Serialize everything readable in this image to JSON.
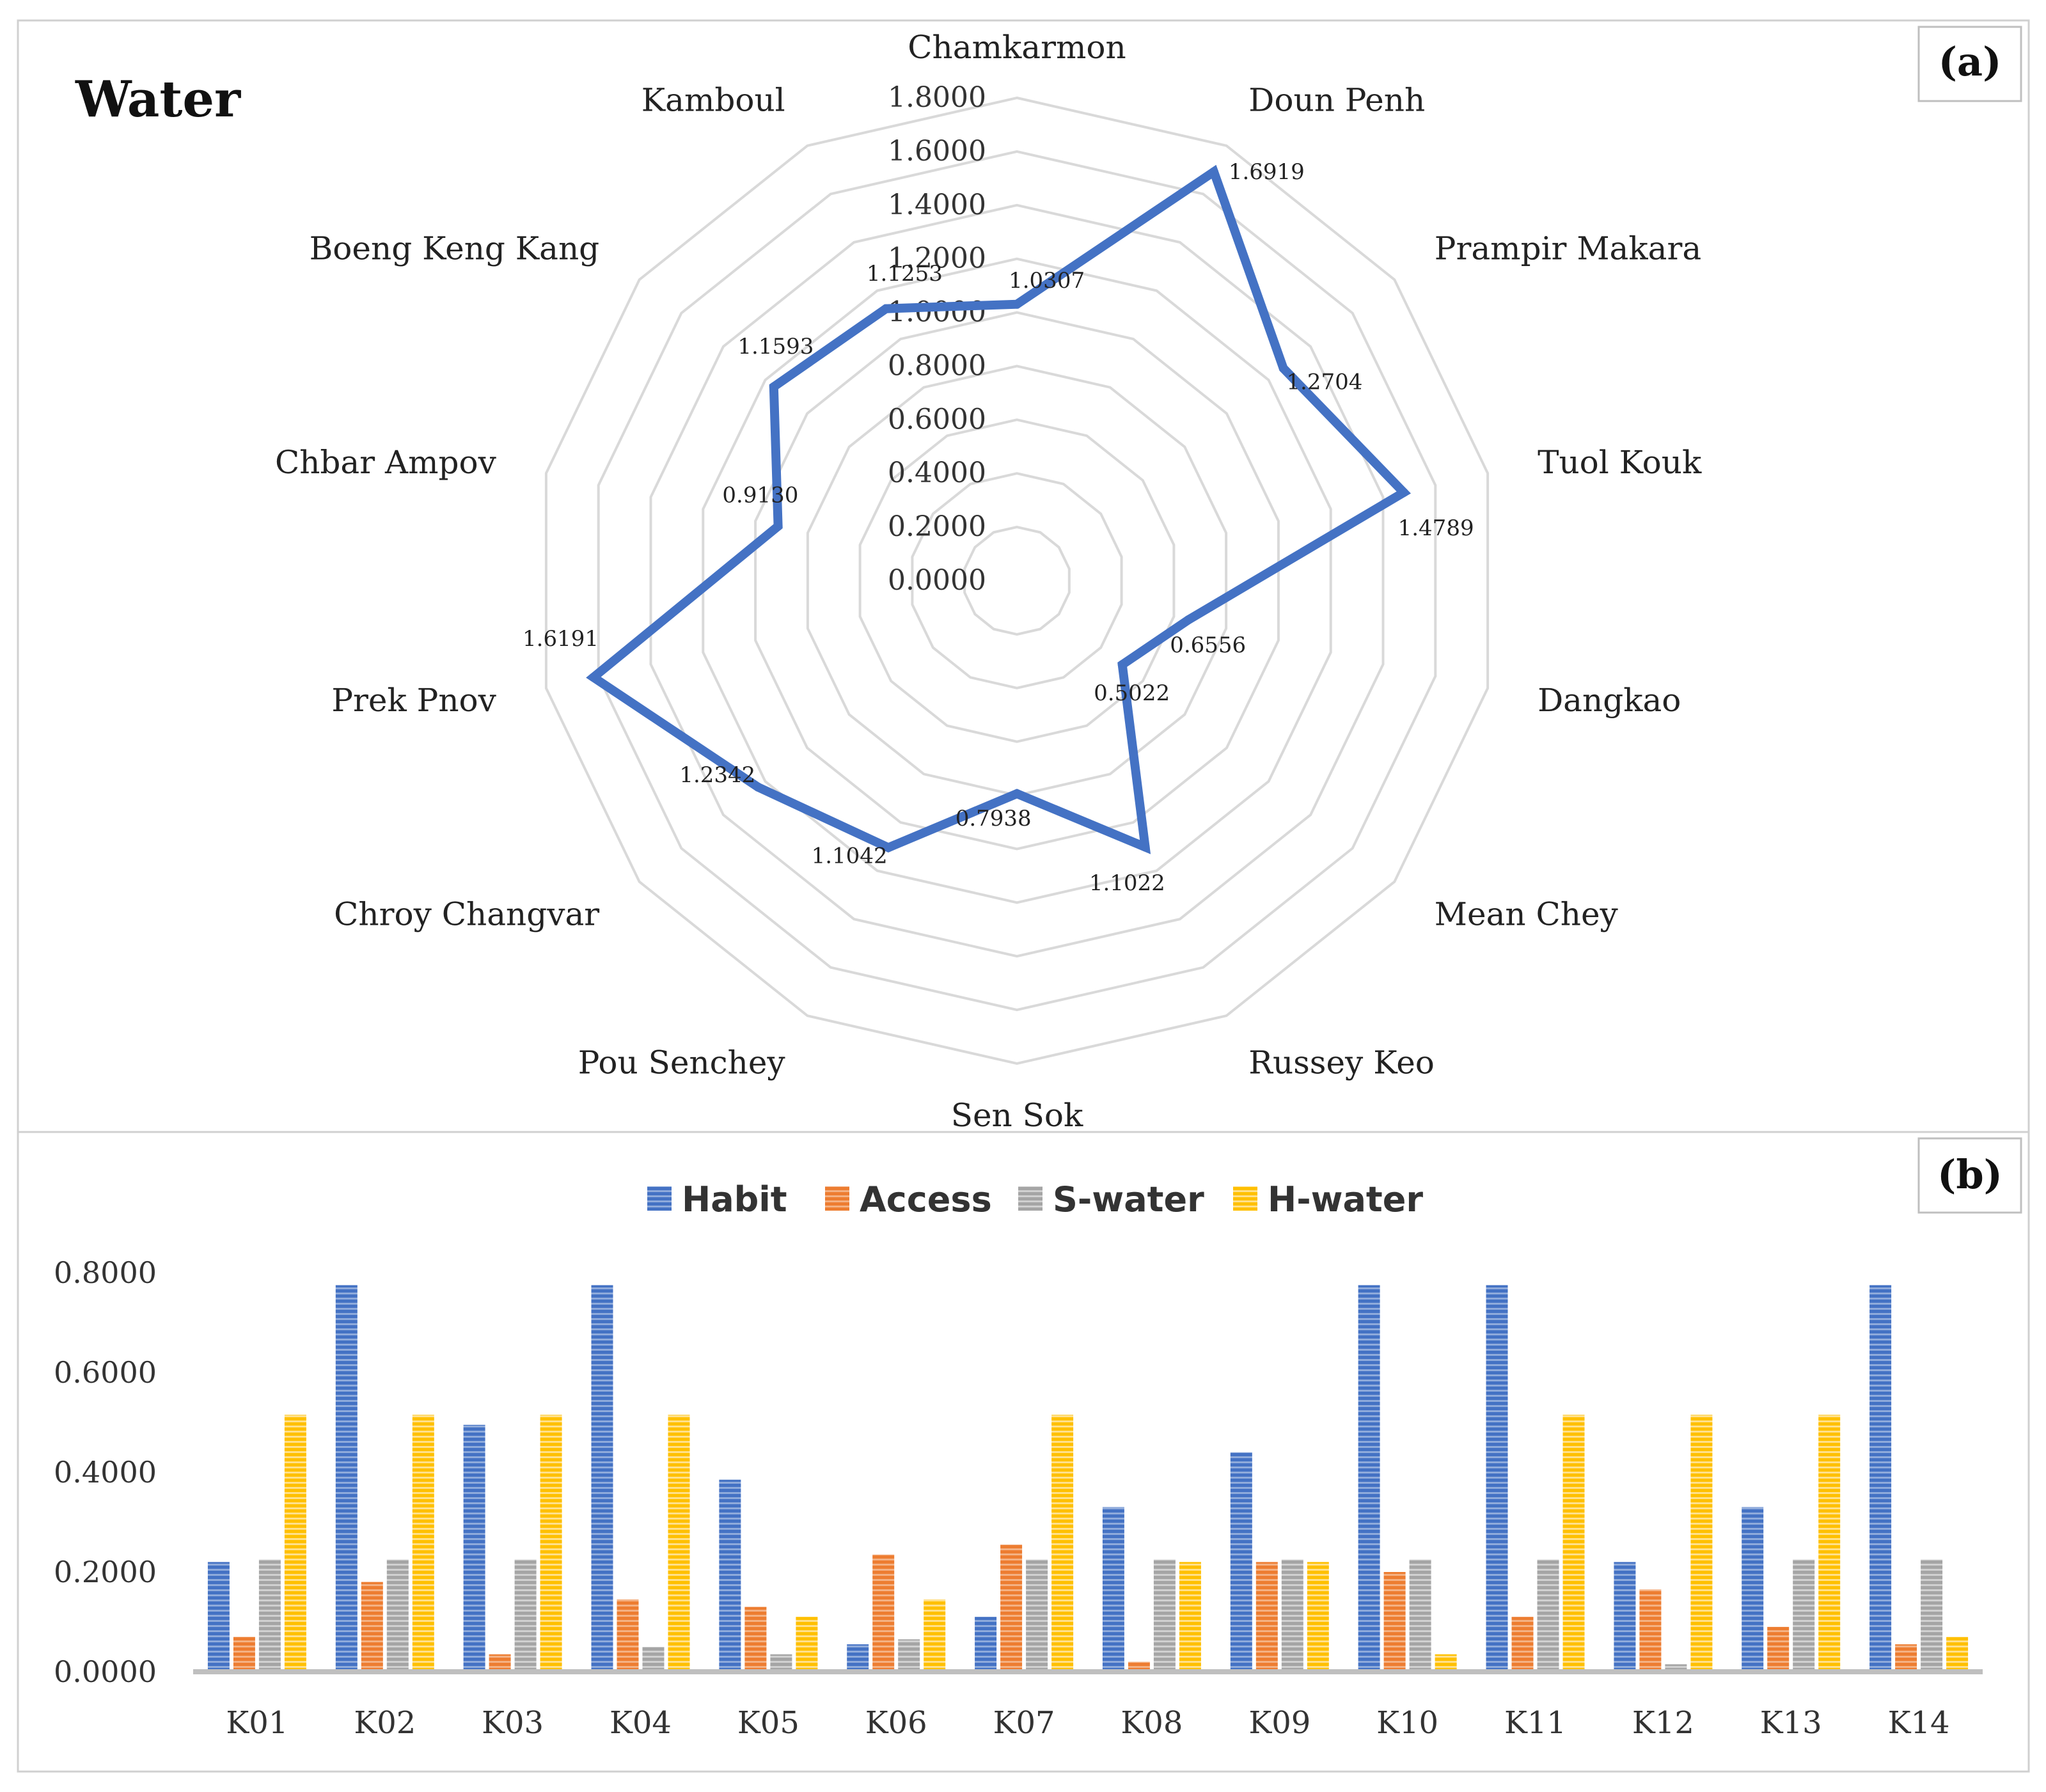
{
  "panel_a_tag": "(a)",
  "panel_b_tag": "(b)",
  "colors": {
    "radar_line": "#4472c4",
    "grid": "#d9d9d9",
    "habit": "#4472c4",
    "access": "#ed7d31",
    "s_water": "#a5a5a5",
    "h_water": "#ffc000"
  },
  "chart_data": [
    {
      "type": "radar",
      "title": "Water",
      "categories": [
        "Chamkarmon",
        "Doun Penh",
        "Prampir Makara",
        "Tuol Kouk",
        "Dangkao",
        "Mean Chey",
        "Russey Keo",
        "Sen Sok",
        "Pou Senchey",
        "Chroy Changvar",
        "Prek Pnov",
        "Chbar Ampov",
        "Boeng Keng Kang",
        "Kamboul"
      ],
      "values": [
        1.0307,
        1.6919,
        1.2704,
        1.4789,
        0.6556,
        0.5022,
        1.1022,
        0.7938,
        1.1042,
        1.2342,
        1.6191,
        0.913,
        1.1593,
        1.1253
      ],
      "value_labels": [
        "1.0307",
        "1.6919",
        "1.2704",
        "1.4789",
        "0.6556",
        "0.5022",
        "1.1022",
        "0.7938",
        "1.1042",
        "1.2342",
        "1.6191",
        "0.9130",
        "1.1593",
        "1.1253"
      ],
      "rmin": 0.0,
      "rmax": 1.8,
      "ticks": [
        "0.0000",
        "0.2000",
        "0.4000",
        "0.6000",
        "0.8000",
        "1.0000",
        "1.2000",
        "1.4000",
        "1.6000",
        "1.8000"
      ]
    },
    {
      "type": "bar",
      "categories": [
        "K01",
        "K02",
        "K03",
        "K04",
        "K05",
        "K06",
        "K07",
        "K08",
        "K09",
        "K10",
        "K11",
        "K12",
        "K13",
        "K14"
      ],
      "series": [
        {
          "name": "Habit",
          "values": [
            0.22,
            0.775,
            0.495,
            0.775,
            0.385,
            0.055,
            0.11,
            0.33,
            0.44,
            0.775,
            0.775,
            0.22,
            0.33,
            0.775
          ]
        },
        {
          "name": "Access",
          "values": [
            0.07,
            0.18,
            0.035,
            0.145,
            0.13,
            0.235,
            0.255,
            0.02,
            0.22,
            0.2,
            0.11,
            0.165,
            0.09,
            0.055
          ]
        },
        {
          "name": "S-water",
          "values": [
            0.225,
            0.225,
            0.225,
            0.05,
            0.035,
            0.065,
            0.225,
            0.225,
            0.225,
            0.225,
            0.225,
            0.015,
            0.225,
            0.225
          ]
        },
        {
          "name": "H-water",
          "values": [
            0.515,
            0.515,
            0.515,
            0.515,
            0.11,
            0.145,
            0.515,
            0.22,
            0.22,
            0.035,
            0.515,
            0.515,
            0.515,
            0.07
          ]
        }
      ],
      "ylim": [
        0,
        0.8
      ],
      "yticks": [
        "0.0000",
        "0.2000",
        "0.4000",
        "0.6000",
        "0.8000"
      ],
      "xlabel": "",
      "ylabel": ""
    }
  ]
}
